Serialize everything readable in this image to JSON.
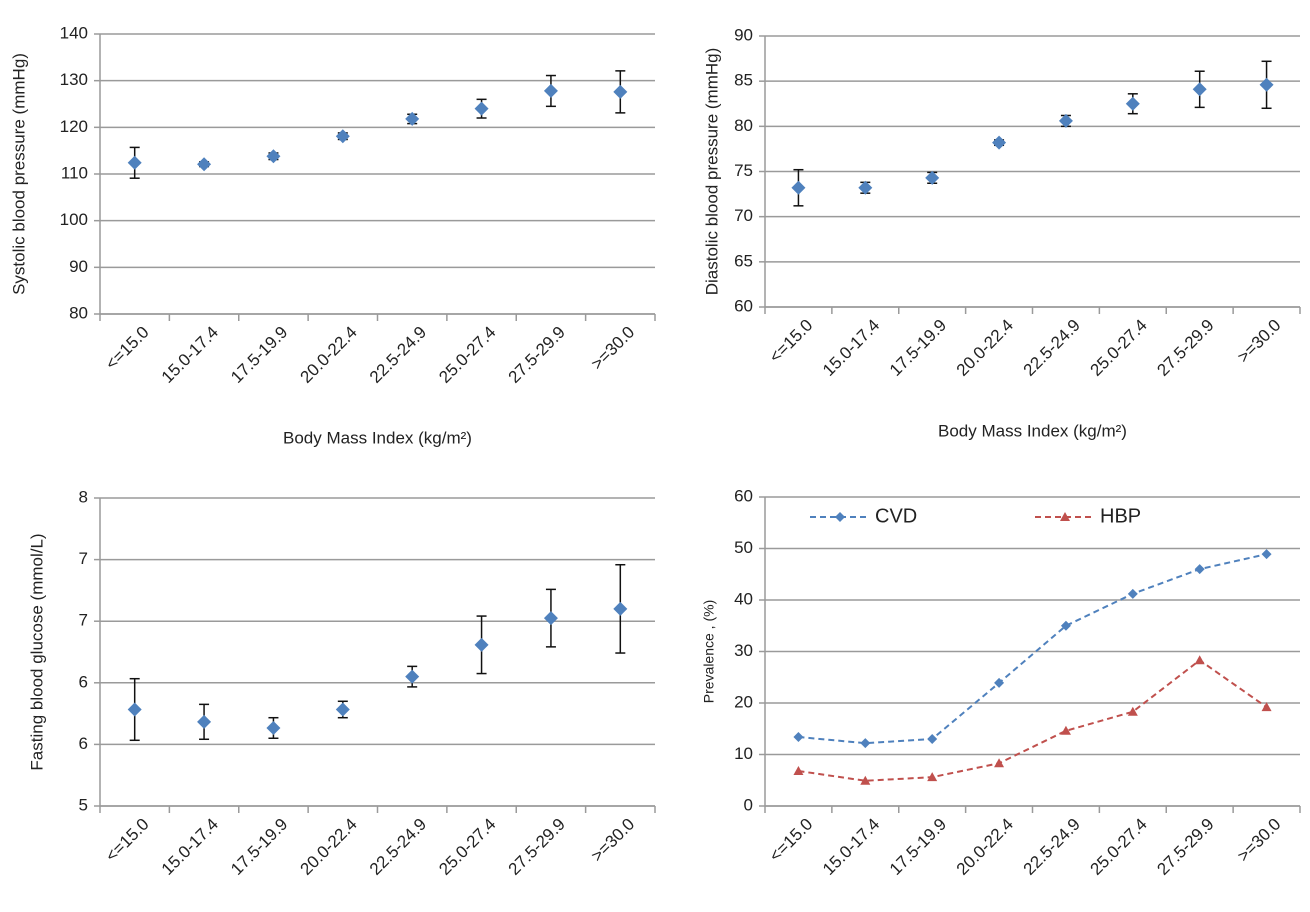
{
  "chart_data": [
    {
      "type": "errorbar",
      "y_label": "Systolic blood pressure (mmHg)",
      "x_label": "Body Mass Index (kg/m²)",
      "categories": [
        "<=15.0",
        "15.0-17.4",
        "17.5-19.9",
        "20.0-22.4",
        "22.5-24.9",
        "25.0-27.4",
        "27.5-29.9",
        ">=30.0"
      ],
      "values": [
        112.4,
        112.1,
        113.8,
        118.1,
        121.8,
        124.0,
        127.8,
        127.6
      ],
      "errors": [
        3.3,
        0.5,
        0.7,
        0.7,
        1.0,
        2.0,
        3.3,
        4.5
      ],
      "color": "#4f81bd",
      "ylim": [
        80,
        140
      ],
      "yticks": [
        80,
        90,
        100,
        110,
        120,
        130,
        140
      ],
      "grid": true
    },
    {
      "type": "errorbar",
      "y_label": "Diastolic blood pressure (mmHg)",
      "x_label": "Body Mass Index (kg/m²)",
      "categories": [
        "<=15.0",
        "15.0-17.4",
        "17.5-19.9",
        "20.0-22.4",
        "22.5-24.9",
        "25.0-27.4",
        "27.5-29.9",
        ">=30.0"
      ],
      "values": [
        73.2,
        73.2,
        74.3,
        78.2,
        80.6,
        82.5,
        84.1,
        84.6
      ],
      "errors": [
        2.0,
        0.6,
        0.6,
        0.3,
        0.6,
        1.1,
        2.0,
        2.6
      ],
      "color": "#4f81bd",
      "ylim": [
        60,
        90
      ],
      "yticks": [
        60,
        65,
        70,
        75,
        80,
        85,
        90
      ],
      "grid": true
    },
    {
      "type": "errorbar",
      "y_label": "Fasting blood glucose (mmol/L)",
      "categories": [
        "<=15.0",
        "15.0-17.4",
        "17.5-19.9",
        "20.0-22.4",
        "22.5-24.9",
        "25.0-27.4",
        "27.5-29.9",
        ">=30.0"
      ],
      "values": [
        5.94,
        5.82,
        5.76,
        5.94,
        6.26,
        6.57,
        6.83,
        6.92
      ],
      "errors": [
        0.3,
        0.17,
        0.1,
        0.08,
        0.1,
        0.28,
        0.28,
        0.43
      ],
      "color": "#4f81bd",
      "ylim": [
        5,
        8
      ],
      "yticks": [
        5,
        {
          "value": 5.6,
          "label": "6"
        },
        {
          "value": 6.2,
          "label": "6"
        },
        {
          "value": 6.8,
          "label": "7"
        },
        {
          "value": 7.4,
          "label": "7"
        },
        8
      ],
      "grid": true
    },
    {
      "type": "line",
      "y_label": "Prevalence , (%)",
      "categories": [
        "<=15.0",
        "15.0-17.4",
        "17.5-19.9",
        "20.0-22.4",
        "22.5-24.9",
        "25.0-27.4",
        "27.5-29.9",
        ">=30.0"
      ],
      "series": [
        {
          "name": "CVD",
          "color": "#4f81bd",
          "marker": "diamond",
          "values": [
            13.4,
            12.2,
            13.0,
            23.9,
            35.0,
            41.2,
            46.0,
            48.9
          ]
        },
        {
          "name": "HBP",
          "color": "#c0504d",
          "marker": "triangle",
          "values": [
            6.8,
            4.9,
            5.6,
            8.3,
            14.6,
            18.3,
            28.3,
            19.2
          ]
        }
      ],
      "line_style": "dashed",
      "legend": "upper left",
      "ylim": [
        0,
        60
      ],
      "yticks": [
        0,
        10,
        20,
        30,
        40,
        50,
        60
      ],
      "grid": true
    }
  ]
}
